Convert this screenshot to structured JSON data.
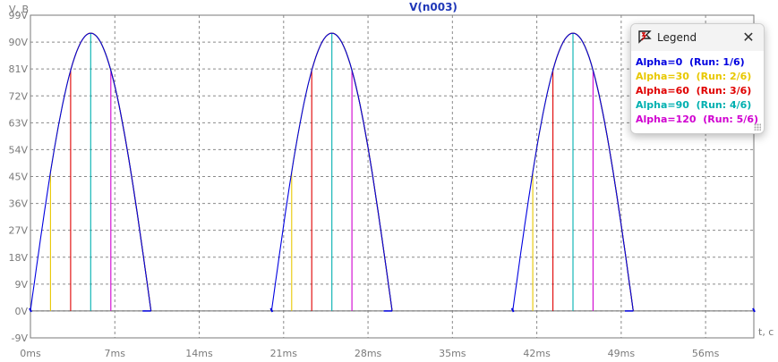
{
  "chart_data": {
    "type": "line",
    "title": "V(n003)",
    "ylabel": "V, В",
    "xlabel": "t, c",
    "ylim": [
      -9,
      99
    ],
    "xlim": [
      0,
      60
    ],
    "grid": true,
    "legend_position": "top-right",
    "y_ticks": [
      "-9V",
      "0V",
      "9V",
      "18V",
      "27V",
      "36V",
      "45V",
      "54V",
      "63V",
      "72V",
      "81V",
      "90V",
      "99V"
    ],
    "x_ticks": [
      "0ms",
      "7ms",
      "14ms",
      "21ms",
      "28ms",
      "35ms",
      "42ms",
      "49ms",
      "56ms"
    ],
    "series": [
      {
        "name": "Alpha=0",
        "run": "(Run: 1/6)",
        "color": "#0000e0",
        "alpha_deg": 0
      },
      {
        "name": "Alpha=30",
        "run": "(Run: 2/6)",
        "color": "#e8c800",
        "alpha_deg": 30
      },
      {
        "name": "Alpha=60",
        "run": "(Run: 3/6)",
        "color": "#e00000",
        "alpha_deg": 60
      },
      {
        "name": "Alpha=90",
        "run": "(Run: 4/6)",
        "color": "#00b0b0",
        "alpha_deg": 90
      },
      {
        "name": "Alpha=120",
        "run": "(Run: 5/6)",
        "color": "#d000d0",
        "alpha_deg": 120
      }
    ],
    "waveform": {
      "period_ms": 20,
      "pulse_starts_ms": [
        0,
        20,
        40
      ],
      "pulse_end_ms": 10,
      "peak_v": 93,
      "peak_ms": 5
    }
  },
  "legend": {
    "title": "Legend",
    "close_label": "✕"
  }
}
